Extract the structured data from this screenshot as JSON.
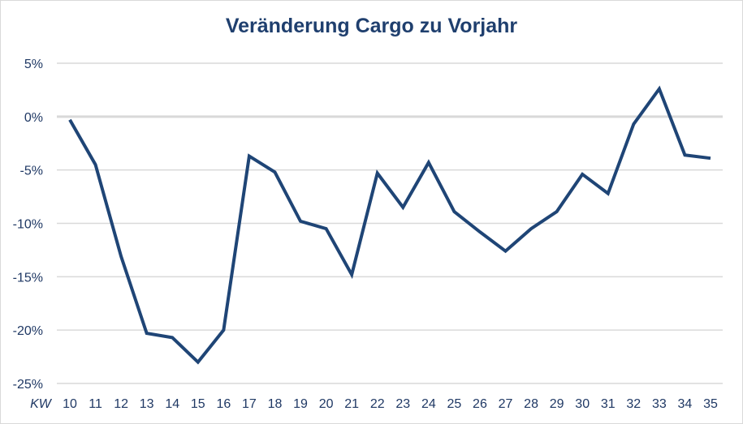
{
  "chart_data": {
    "type": "line",
    "title": "Veränderung Cargo zu Vorjahr",
    "xlabel": "KW",
    "ylabel": "",
    "categories": [
      "10",
      "11",
      "12",
      "13",
      "14",
      "15",
      "16",
      "17",
      "18",
      "19",
      "20",
      "21",
      "22",
      "23",
      "24",
      "25",
      "26",
      "27",
      "28",
      "29",
      "30",
      "31",
      "32",
      "33",
      "34",
      "35"
    ],
    "series": [
      {
        "name": "Veränderung Cargo zu Vorjahr",
        "color": "#1f4576",
        "values": [
          -0.3,
          -4.5,
          -13.1,
          -20.3,
          -20.7,
          -23.0,
          -20.0,
          -3.7,
          -5.2,
          -9.8,
          -10.5,
          -14.8,
          -5.3,
          -8.5,
          -4.3,
          -8.9,
          -10.8,
          -12.6,
          -10.5,
          -8.9,
          -5.4,
          -7.2,
          -0.7,
          2.6,
          -3.6,
          -3.9
        ]
      }
    ],
    "yticks": [
      "5%",
      "0%",
      "-5%",
      "-10%",
      "-15%",
      "-20%",
      "-25%"
    ],
    "ylim": [
      -25,
      5
    ],
    "grid": true,
    "legend": "none"
  },
  "colors": {
    "line": "#1f4576",
    "title": "#1f3f6e",
    "grid": "#d9d9d9",
    "axis_text": "#1f3864"
  }
}
